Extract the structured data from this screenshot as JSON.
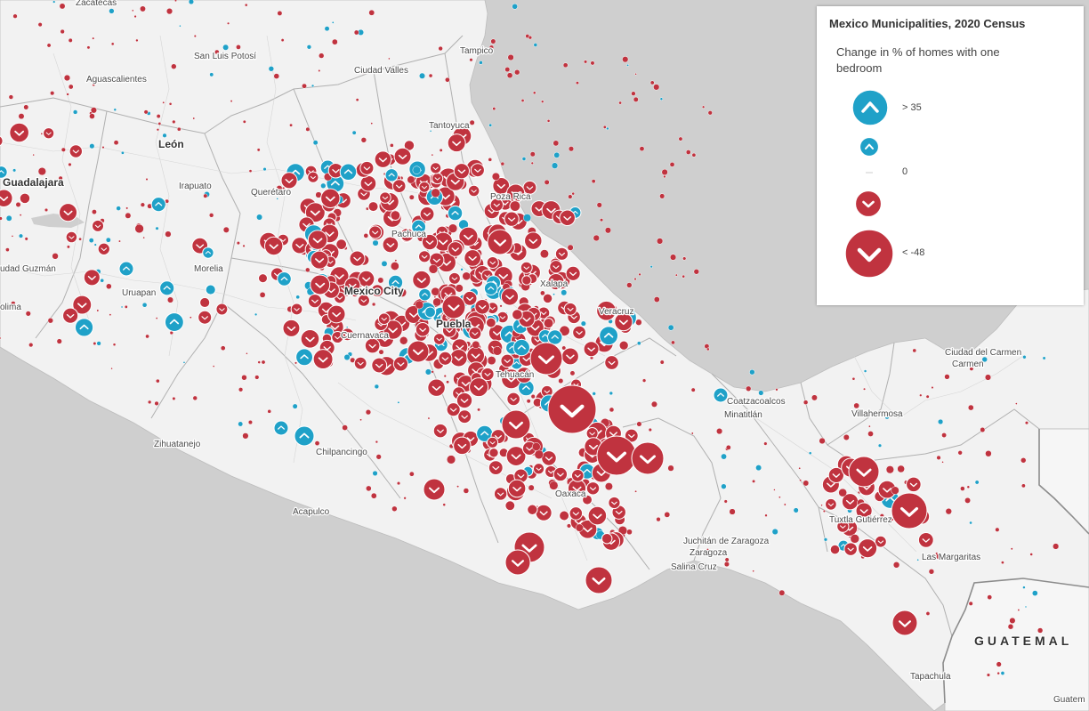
{
  "legend": {
    "title": "Mexico Municipalities, 2020 Census",
    "field": "Change in % of homes with one bedroom",
    "items": [
      {
        "label": "> 35",
        "direction": "up",
        "color": "#1fa1c8",
        "size": "large"
      },
      {
        "label": "",
        "direction": "up",
        "color": "#1fa1c8",
        "size": "small"
      },
      {
        "label": "0",
        "direction": "none",
        "color": "#bbbbbb",
        "size": "zero"
      },
      {
        "label": "",
        "direction": "down",
        "color": "#c0333f",
        "size": "small"
      },
      {
        "label": "< -48",
        "direction": "down",
        "color": "#c0333f",
        "size": "large"
      }
    ]
  },
  "map": {
    "land_color": "#f2f2f2",
    "water_color": "#cfcfcf",
    "decrease_color": "#c0333f",
    "increase_color": "#1fa1c8",
    "cities": [
      "Zacatecas",
      "San Luis Potosí",
      "Tampico",
      "Ciudad Valles",
      "Aguascalientes",
      "León",
      "Guadalajara",
      "Tantoyuca",
      "Irapuato",
      "Querétaro",
      "Poza Rica",
      "Pachuca",
      "udad Guzmán",
      "Morelia",
      "Uruapan",
      "Mexico City",
      "Xalapa",
      "olima",
      "Veracruz",
      "Puebla",
      "Cuernavaca",
      "Tehuacán",
      "Ciudad del Carmen",
      "Coatzacoalcos",
      "Minatitlán",
      "Villahermosa",
      "Zihuatanejo",
      "Chilpancingo",
      "Oaxaca",
      "Acapulco",
      "Tuxtla Gutiérrez",
      "Juchitán de Zaragoza",
      "Las Margaritas",
      "Salina Cruz",
      "Tapachula",
      "Guatem"
    ],
    "countries": [
      "GUATEMAL"
    ]
  }
}
